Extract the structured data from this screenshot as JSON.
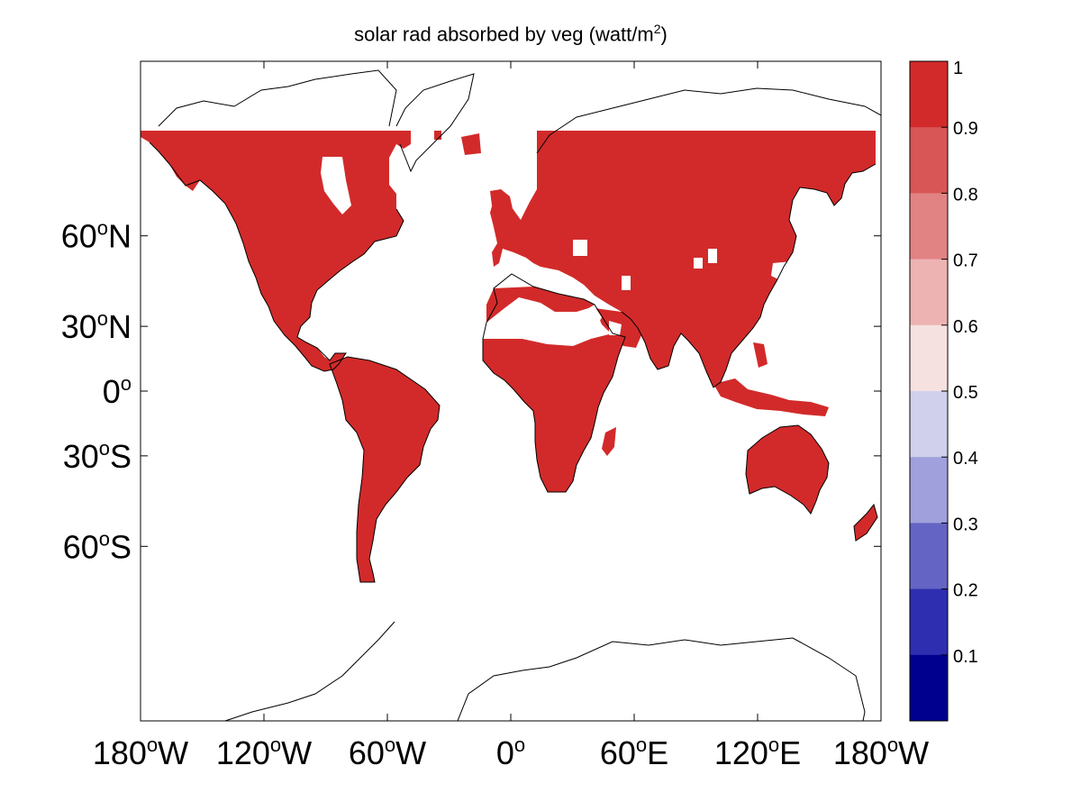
{
  "title": {
    "main": "solar rad absorbed by veg (watt/m",
    "sup": "2",
    "close": ")"
  },
  "x_ticks": [
    {
      "lon": -180,
      "num": "180",
      "sup": "o",
      "hemi": "W"
    },
    {
      "lon": -120,
      "num": "120",
      "sup": "o",
      "hemi": "W"
    },
    {
      "lon": -60,
      "num": "60",
      "sup": "o",
      "hemi": "W"
    },
    {
      "lon": 0,
      "num": "0",
      "sup": "o",
      "hemi": ""
    },
    {
      "lon": 60,
      "num": "60",
      "sup": "o",
      "hemi": "E"
    },
    {
      "lon": 120,
      "num": "120",
      "sup": "o",
      "hemi": "E"
    },
    {
      "lon": 180,
      "num": "180",
      "sup": "o",
      "hemi": "W"
    }
  ],
  "y_ticks": [
    {
      "lat": 60,
      "num": "60",
      "sup": "o",
      "hemi": "N"
    },
    {
      "lat": 30,
      "num": "30",
      "sup": "o",
      "hemi": "N"
    },
    {
      "lat": 0,
      "num": "0",
      "sup": "o",
      "hemi": ""
    },
    {
      "lat": -30,
      "num": "30",
      "sup": "o",
      "hemi": "S"
    },
    {
      "lat": -60,
      "num": "60",
      "sup": "o",
      "hemi": "S"
    }
  ],
  "colorbar": {
    "ticks": [
      "1",
      "0.9",
      "0.8",
      "0.7",
      "0.6",
      "0.5",
      "0.4",
      "0.3",
      "0.2",
      "0.1"
    ],
    "colors": [
      "#d22a2a",
      "#d85656",
      "#e28383",
      "#edb3b3",
      "#f6e1e1",
      "#d0d0ec",
      "#a0a0dc",
      "#6464c4",
      "#2e2eb0",
      "#00008e"
    ]
  },
  "chart_data": {
    "type": "heatmap",
    "title": "solar rad absorbed by veg (watt/m2)",
    "projection": "mercator",
    "lon_range": [
      -180,
      180
    ],
    "lat_range": [
      -80,
      80
    ],
    "value_range": [
      0,
      1
    ],
    "land_value": 1,
    "land_color": "#d22a2a",
    "notes_visible": "vegetated land filled at top of color scale; deserts, ice and ocean blank"
  }
}
